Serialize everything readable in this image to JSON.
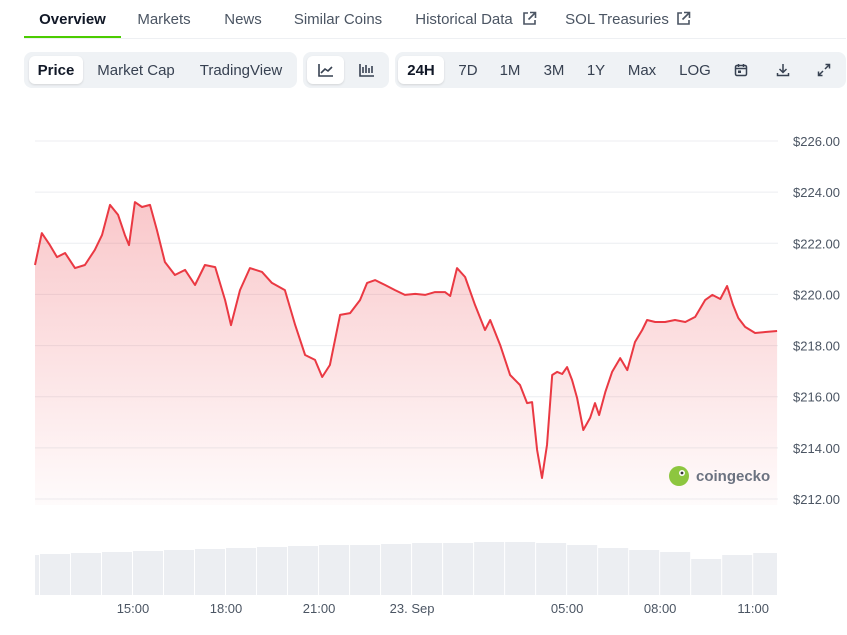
{
  "tabs": [
    "Overview",
    "Markets",
    "News",
    "Similar Coins",
    "Historical Data",
    "SOL Treasuries"
  ],
  "chart_views": [
    "Price",
    "Market Cap",
    "TradingView"
  ],
  "ranges": [
    "24H",
    "7D",
    "1M",
    "3M",
    "1Y",
    "Max",
    "LOG"
  ],
  "watermark": "coingecko",
  "chart_data": {
    "type": "line",
    "color": "#ea3943",
    "x": [
      11.84,
      12.06,
      12.32,
      12.55,
      12.81,
      13.13,
      13.45,
      13.77,
      14.0,
      14.26,
      14.52,
      14.74,
      14.87,
      15.06,
      15.29,
      15.55,
      15.77,
      16.03,
      16.35,
      16.68,
      17.0,
      17.32,
      17.65,
      17.97,
      18.16,
      18.45,
      18.77,
      19.16,
      19.48,
      19.9,
      20.23,
      20.55,
      20.87,
      21.1,
      21.35,
      21.68,
      22.0,
      22.32,
      22.55,
      22.81,
      23.13,
      23.45,
      23.77,
      24.1,
      24.42,
      24.74,
      25.06,
      25.23,
      25.45,
      25.71,
      26.03,
      26.35,
      26.52,
      26.84,
      27.16,
      27.48,
      27.71,
      27.87,
      28.03,
      28.19,
      28.35,
      28.52,
      28.68,
      28.84,
      29.0,
      29.16,
      29.32,
      29.52,
      29.74,
      29.9,
      30.03,
      30.23,
      30.45,
      30.71,
      30.94,
      31.19,
      31.42,
      31.58,
      31.84,
      32.16,
      32.48,
      32.81,
      33.13,
      33.45,
      33.68,
      33.94,
      34.16,
      34.35,
      34.52,
      34.74,
      35.06,
      35.39,
      35.77
    ],
    "values": [
      221.15,
      222.4,
      221.93,
      221.46,
      221.62,
      221.03,
      221.15,
      221.74,
      222.32,
      223.5,
      223.11,
      222.32,
      221.93,
      223.61,
      223.42,
      223.5,
      222.52,
      221.27,
      220.76,
      220.96,
      220.37,
      221.15,
      221.07,
      219.78,
      218.8,
      220.17,
      221.03,
      220.88,
      220.45,
      220.17,
      218.8,
      217.63,
      217.44,
      216.77,
      217.24,
      219.2,
      219.27,
      219.78,
      220.45,
      220.56,
      220.37,
      220.17,
      219.98,
      220.02,
      219.98,
      220.09,
      220.09,
      219.94,
      221.03,
      220.68,
      219.59,
      218.61,
      219.0,
      218.02,
      216.85,
      216.46,
      215.75,
      215.79,
      213.92,
      212.82,
      214.11,
      216.85,
      216.97,
      216.89,
      217.16,
      216.65,
      215.95,
      214.7,
      215.17,
      215.75,
      215.28,
      216.18,
      216.97,
      217.51,
      217.04,
      218.14,
      218.61,
      219.0,
      218.92,
      218.92,
      219.0,
      218.92,
      219.12,
      219.78,
      219.98,
      219.82,
      220.33,
      219.59,
      219.08,
      218.73,
      218.49,
      218.53,
      218.57
    ],
    "xlim": [
      11.84,
      35.8
    ],
    "ylim": [
      212,
      226
    ],
    "xticks": [
      {
        "value": 15,
        "label": "15:00"
      },
      {
        "value": 18,
        "label": "18:00"
      },
      {
        "value": 21,
        "label": "21:00"
      },
      {
        "value": 24,
        "label": "23. Sep"
      },
      {
        "value": 29,
        "label": "05:00"
      },
      {
        "value": 32,
        "label": "08:00"
      },
      {
        "value": 35,
        "label": "11:00"
      }
    ],
    "yticks": [
      {
        "value": 212,
        "label": "$212.00"
      },
      {
        "value": 214,
        "label": "$214.00"
      },
      {
        "value": 216,
        "label": "$216.00"
      },
      {
        "value": 218,
        "label": "$218.00"
      },
      {
        "value": 220,
        "label": "$220.00"
      },
      {
        "value": 222,
        "label": "$222.00"
      },
      {
        "value": 224,
        "label": "$224.00"
      },
      {
        "value": 226,
        "label": "$226.00"
      }
    ],
    "grid": true,
    "volume": {
      "color": "#eceef2",
      "ylim": [
        0,
        60
      ],
      "x": [
        11.84,
        12,
        13,
        14,
        15,
        16,
        17,
        18,
        19,
        20,
        21,
        22,
        23,
        24,
        25,
        26,
        27,
        28,
        29,
        30,
        31,
        32,
        33,
        34,
        35
      ],
      "values": [
        40,
        41,
        42,
        43,
        44,
        45,
        46,
        47,
        48,
        49,
        50,
        50,
        51,
        52,
        52,
        53,
        53,
        52,
        50,
        47,
        45,
        43,
        36,
        40,
        42
      ]
    }
  }
}
